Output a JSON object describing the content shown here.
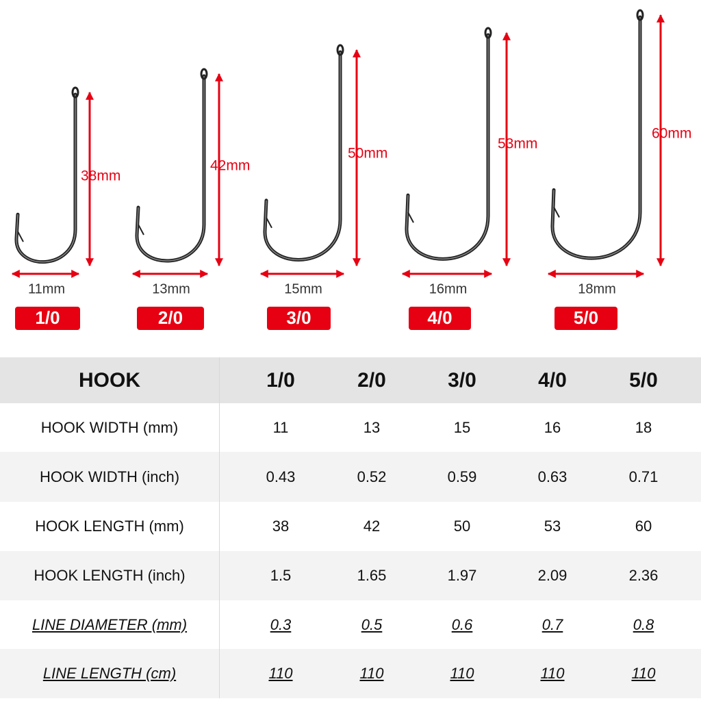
{
  "hooks": [
    {
      "width": "11mm",
      "length": "38mm",
      "size": "1/0"
    },
    {
      "width": "13mm",
      "length": "42mm",
      "size": "2/0"
    },
    {
      "width": "15mm",
      "length": "50mm",
      "size": "3/0"
    },
    {
      "width": "16mm",
      "length": "53mm",
      "size": "4/0"
    },
    {
      "width": "18mm",
      "length": "60mm",
      "size": "5/0"
    }
  ],
  "table": {
    "header": [
      "HOOK",
      "1/0",
      "2/0",
      "3/0",
      "4/0",
      "5/0"
    ],
    "rows": [
      [
        "HOOK WIDTH (mm)",
        "11",
        "13",
        "15",
        "16",
        "18"
      ],
      [
        "HOOK WIDTH (inch)",
        "0.43",
        "0.52",
        "0.59",
        "0.63",
        "0.71"
      ],
      [
        "HOOK LENGTH (mm)",
        "38",
        "42",
        "50",
        "53",
        "60"
      ],
      [
        "HOOK LENGTH (inch)",
        "1.5",
        "1.65",
        "1.97",
        "2.09",
        "2.36"
      ],
      [
        "LINE DIAMETER (mm)",
        "0.3",
        "0.5",
        "0.6",
        "0.7",
        "0.8"
      ],
      [
        "LINE LENGTH (cm)",
        "110",
        "110",
        "110",
        "110",
        "110"
      ]
    ]
  }
}
